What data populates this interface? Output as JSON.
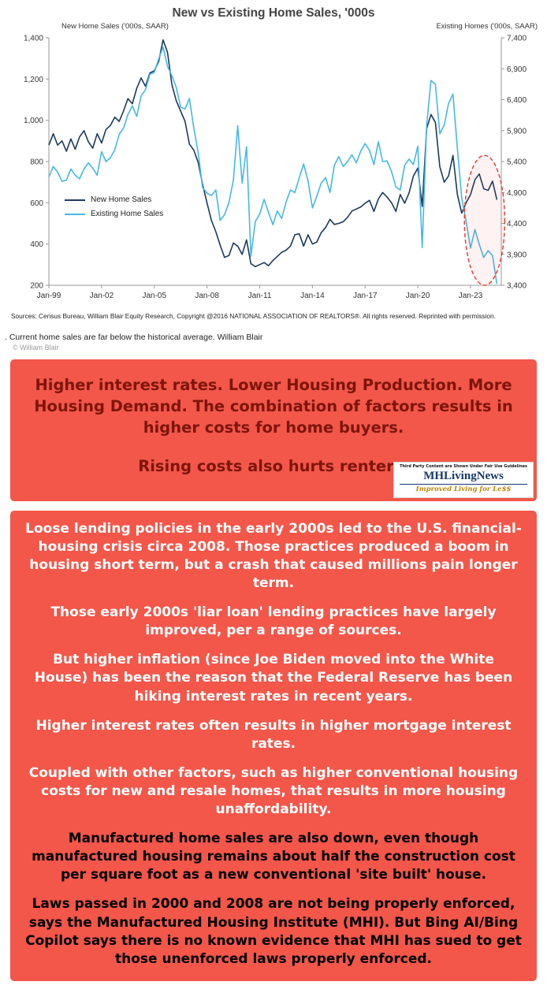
{
  "colors": {
    "box-red": "#f2574a",
    "callout-text": "#7e150c",
    "navy-line": "#1b3a5e",
    "light-blue-line": "#45b8e8",
    "annotation-red": "#e0392e",
    "logo-navy": "#16386e",
    "logo-gold": "#b8860b"
  },
  "chart_data": {
    "type": "line",
    "title": "New vs Existing Home Sales, '000s",
    "grid": false,
    "legend_position": "inside-left",
    "x_range": [
      1999,
      2024.75
    ],
    "x_ticks": [
      {
        "v": 1999,
        "label": "Jan-99"
      },
      {
        "v": 2002,
        "label": "Jan-02"
      },
      {
        "v": 2005,
        "label": "Jan-05"
      },
      {
        "v": 2008,
        "label": "Jan-08"
      },
      {
        "v": 2011,
        "label": "Jan-11"
      },
      {
        "v": 2014,
        "label": "Jan-14"
      },
      {
        "v": 2017,
        "label": "Jan-17"
      },
      {
        "v": 2020,
        "label": "Jan-20"
      },
      {
        "v": 2023,
        "label": "Jan-23"
      }
    ],
    "left_axis": {
      "label": "New Home Sales ('000s, SAAR)",
      "range": [
        200,
        1400
      ],
      "ticks": [
        {
          "v": 200,
          "label": "200"
        },
        {
          "v": 400,
          "label": "400"
        },
        {
          "v": 600,
          "label": "600"
        },
        {
          "v": 800,
          "label": "800"
        },
        {
          "v": 1000,
          "label": "1,000"
        },
        {
          "v": 1200,
          "label": "1,200"
        },
        {
          "v": 1400,
          "label": "1,400"
        }
      ]
    },
    "right_axis": {
      "label": "Existing Homes ('000s, SAAR)",
      "range": [
        3400,
        7400
      ],
      "ticks": [
        {
          "v": 3400,
          "label": "3,400"
        },
        {
          "v": 3900,
          "label": "3,900"
        },
        {
          "v": 4400,
          "label": "4,400"
        },
        {
          "v": 4900,
          "label": "4,900"
        },
        {
          "v": 5400,
          "label": "5,400"
        },
        {
          "v": 5900,
          "label": "5,900"
        },
        {
          "v": 6400,
          "label": "6,400"
        },
        {
          "v": 6900,
          "label": "6,900"
        },
        {
          "v": 7400,
          "label": "7,400"
        }
      ]
    },
    "series": [
      {
        "name": "New Home Sales",
        "axis": "left",
        "color": "#1b3a5e",
        "start": 1999,
        "step": 0.25,
        "values": [
          880,
          935,
          880,
          900,
          850,
          910,
          860,
          920,
          950,
          895,
          865,
          935,
          890,
          955,
          975,
          1015,
          995,
          1045,
          1105,
          1080,
          1155,
          1205,
          1165,
          1230,
          1240,
          1285,
          1390,
          1330,
          1175,
          1095,
          1045,
          995,
          885,
          855,
          795,
          690,
          600,
          515,
          460,
          395,
          335,
          345,
          405,
          390,
          350,
          420,
          305,
          290,
          300,
          310,
          295,
          320,
          340,
          360,
          370,
          390,
          445,
          450,
          390,
          445,
          400,
          410,
          455,
          480,
          520,
          495,
          500,
          508,
          530,
          560,
          570,
          580,
          598,
          612,
          558,
          618,
          650,
          628,
          600,
          558,
          640,
          598,
          648,
          730,
          768,
          582,
          960,
          1028,
          990,
          775,
          700,
          730,
          830,
          640,
          550,
          600,
          640,
          712,
          740,
          668,
          660,
          705,
          615
        ]
      },
      {
        "name": "Existing Home Sales",
        "axis": "right",
        "color": "#45b8e8",
        "start": 1999,
        "step": 0.25,
        "values": [
          5150,
          5320,
          5230,
          5080,
          5100,
          5280,
          5180,
          5120,
          5280,
          5380,
          5290,
          5180,
          5560,
          5400,
          5460,
          5590,
          5840,
          5940,
          6160,
          6300,
          6130,
          6460,
          6560,
          6810,
          6840,
          7060,
          7250,
          6940,
          6790,
          6600,
          6280,
          6250,
          6420,
          5940,
          5540,
          4980,
          4890,
          4850,
          4940,
          4450,
          4540,
          4740,
          5100,
          5980,
          5050,
          5640,
          3870,
          4430,
          4550,
          4790,
          4580,
          4380,
          4600,
          4480,
          4740,
          4940,
          4900,
          5140,
          5360,
          5090,
          4650,
          4840,
          5050,
          5140,
          4900,
          5340,
          5480,
          5320,
          5400,
          5510,
          5380,
          5570,
          5690,
          5580,
          5350,
          5720,
          5400,
          5410,
          5240,
          4990,
          4940,
          5340,
          5440,
          5350,
          5650,
          4010,
          5990,
          6710,
          6650,
          5850,
          5990,
          6340,
          6490,
          5610,
          4810,
          4430,
          4000,
          4300,
          4060,
          3850,
          3960,
          3880,
          3420
        ]
      }
    ],
    "annotation": {
      "shape": "dashed-ellipse",
      "color": "#e0392e",
      "cx": 2023.8,
      "cy": 4450,
      "rx": 1.15,
      "ry": 1050
    },
    "sources": "Sources: Census Bureau, William Blair Equity Research, Copyright @2016 NATIONAL ASSOCIATION OF REALTORS®. All rights reserved.  Reprinted with permission."
  },
  "caption": {
    "text": ".  Current home sales are far below the historical average. William Blair",
    "copyright": "© William Blair"
  },
  "callout": {
    "lines": [
      "Higher interest rates. Lower Housing Production. More Housing Demand. The combination of factors results in higher costs for home buyers.",
      "Rising costs also hurts renters."
    ],
    "logo": {
      "disclaimer": "Third Party Content are Shown Under Fair Use Guidelines",
      "name": "MHLivingNews",
      "tagline": "Improved Living for Le$$"
    }
  },
  "commentary": {
    "paragraphs": [
      "Loose lending policies in the early 2000s led to the U.S. financial-housing crisis circa 2008. Those practices produced a boom in housing short term, but a crash that caused millions pain longer term.",
      "Those early 2000s 'liar loan' lending practices have largely improved, per a range of sources.",
      "But higher inflation (since Joe Biden moved into the White House) has been the reason that the Federal Reserve has been hiking interest rates in recent years.",
      "Higher interest rates often results in higher mortgage interest rates.",
      "Coupled with other factors, such as higher conventional housing costs for new and resale homes, that results in more housing unaffordability.",
      "Manufactured home sales are also down, even though manufactured housing remains about half the construction cost per square foot as a new conventional 'site built' house.",
      "Laws passed in 2000 and 2008 are not being properly enforced, says the Manufactured Housing Institute (MHI). But Bing AI/Bing Copilot says there is no known evidence that MHI has sued to get those unenforced laws properly enforced."
    ]
  }
}
